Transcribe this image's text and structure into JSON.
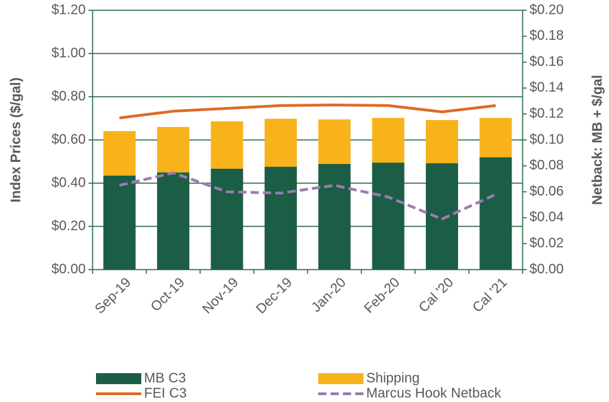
{
  "chart_data": {
    "type": "bar",
    "stacked": true,
    "ylabel": "Index Prices ($/gal)",
    "y2label": "Netback: MB + $/gal",
    "categories": [
      "Sep-19",
      "Oct-19",
      "Nov-19",
      "Dec-19",
      "Jan-20",
      "Feb-20",
      "Cal '20",
      "Cal '21"
    ],
    "series": [
      {
        "name": "MB C3",
        "type": "bar",
        "color": "#1b5e45",
        "values": [
          0.435,
          0.45,
          0.467,
          0.476,
          0.489,
          0.495,
          0.492,
          0.52
        ]
      },
      {
        "name": "Shipping",
        "type": "bar",
        "color": "#f8b21c",
        "values": [
          0.206,
          0.21,
          0.219,
          0.222,
          0.206,
          0.207,
          0.2,
          0.182
        ]
      },
      {
        "name": "FEI C3",
        "type": "line",
        "color": "#dd6a27",
        "values": [
          0.702,
          0.733,
          0.746,
          0.759,
          0.762,
          0.759,
          0.73,
          0.759
        ]
      },
      {
        "name": "Marcus Hook Netback",
        "type": "line",
        "dashed": true,
        "axis": "y2",
        "color": "#9b7bb0",
        "values": [
          0.065,
          0.0746,
          0.06,
          0.059,
          0.065,
          0.056,
          0.039,
          0.058
        ]
      }
    ],
    "ylim": [
      0,
      1.2
    ],
    "yticks": [
      {
        "value": 0,
        "label": "$0.00"
      },
      {
        "value": 0.2,
        "label": "$0.20"
      },
      {
        "value": 0.4,
        "label": "$0.40"
      },
      {
        "value": 0.6,
        "label": "$0.60"
      },
      {
        "value": 0.8,
        "label": "$0.80"
      },
      {
        "value": 1.0,
        "label": "$1.00"
      },
      {
        "value": 1.2,
        "label": "$1.20"
      }
    ],
    "y2lim": [
      0,
      0.2
    ],
    "y2ticks": [
      {
        "value": 0,
        "label": "$0.00"
      },
      {
        "value": 0.02,
        "label": "$0.02"
      },
      {
        "value": 0.04,
        "label": "$0.04"
      },
      {
        "value": 0.06,
        "label": "$0.06"
      },
      {
        "value": 0.08,
        "label": "$0.08"
      },
      {
        "value": 0.1,
        "label": "$0.10"
      },
      {
        "value": 0.12,
        "label": "$0.12"
      },
      {
        "value": 0.14,
        "label": "$0.14"
      },
      {
        "value": 0.16,
        "label": "$0.16"
      },
      {
        "value": 0.18,
        "label": "$0.18"
      },
      {
        "value": 0.2,
        "label": "$0.20"
      }
    ],
    "grid": true,
    "legend": "bottom"
  }
}
